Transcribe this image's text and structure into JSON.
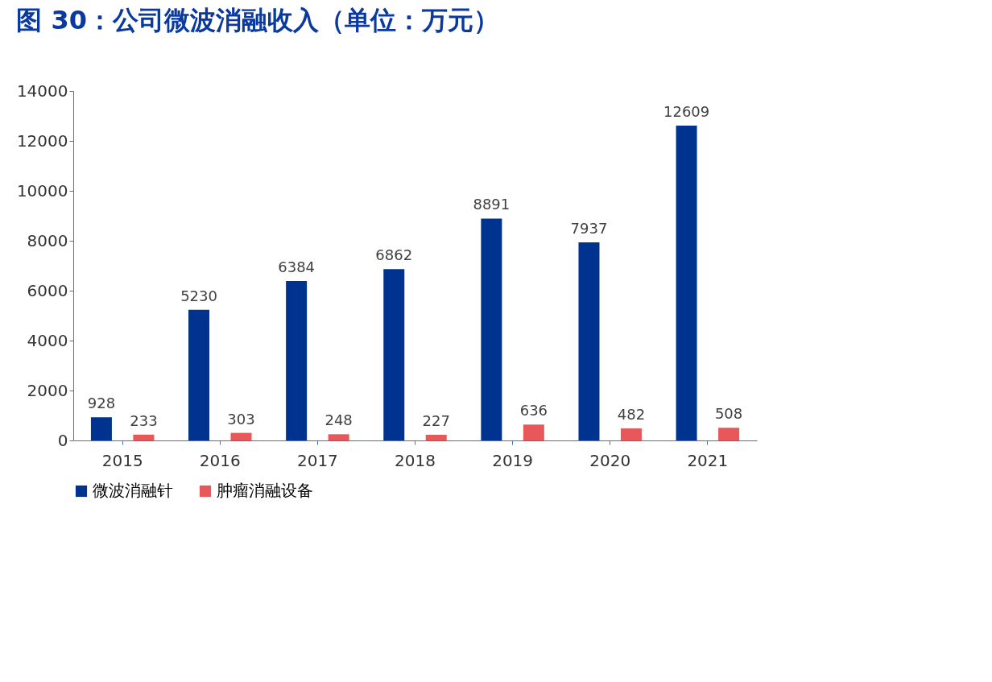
{
  "chart_data": {
    "type": "bar",
    "title": "图 30：公司微波消融收入（单位：万元）",
    "categories": [
      "2015",
      "2016",
      "2017",
      "2018",
      "2019",
      "2020",
      "2021"
    ],
    "series": [
      {
        "name": "微波消融针",
        "color": "#00338f",
        "values": [
          928,
          5230,
          6384,
          6862,
          8891,
          7937,
          12609
        ]
      },
      {
        "name": "肿瘤消融设备",
        "color": "#e8585a",
        "values": [
          233,
          303,
          248,
          227,
          636,
          482,
          508
        ]
      }
    ],
    "ylim": [
      0,
      14000
    ],
    "yticks": [
      0,
      2000,
      4000,
      6000,
      8000,
      10000,
      12000,
      14000
    ],
    "grid": false,
    "legend": "bottom",
    "data_labels": true
  }
}
